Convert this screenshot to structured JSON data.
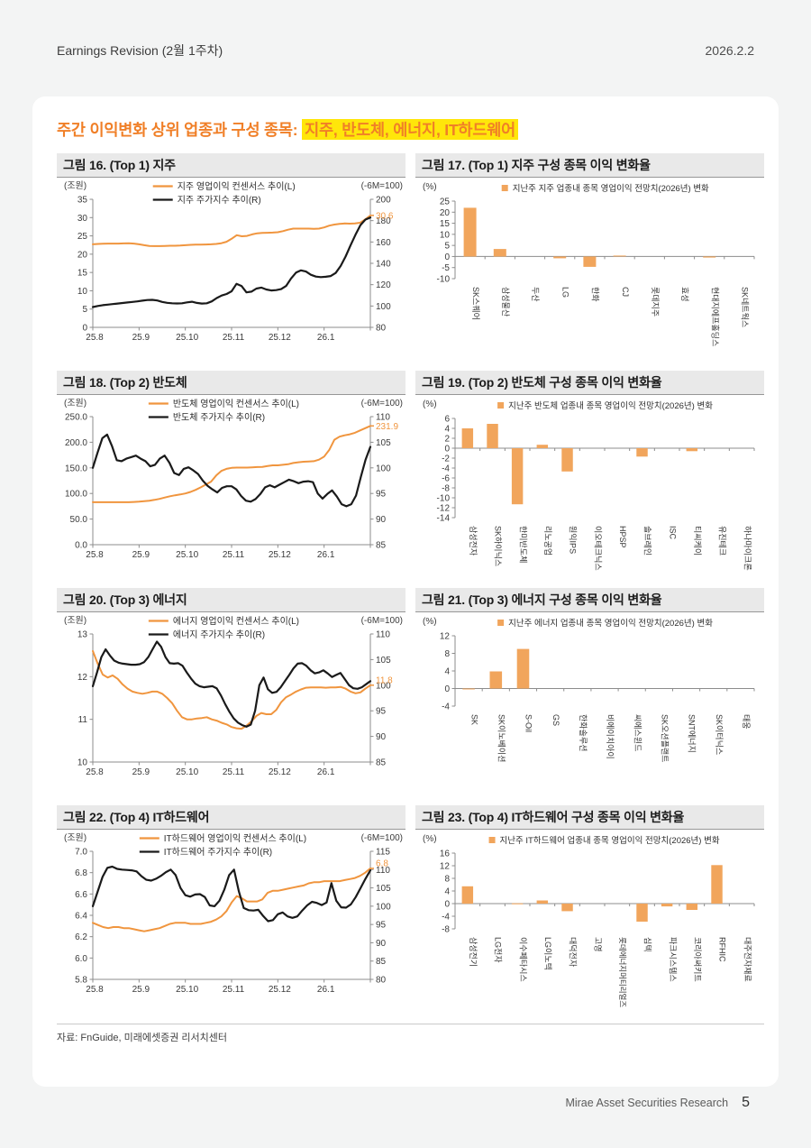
{
  "page": {
    "header_left": "Earnings Revision (2월 1주차)",
    "header_right": "2026.2.2",
    "title_prefix": "주간 이익변화 상위 업종과 구성 종목: ",
    "title_highlight": "지주, 반도체, 에너지, IT하드웨어",
    "source": "자료: FnGuide, 미래에셋증권 리서치센터",
    "footer_brand": "Mirae Asset Securities Research",
    "footer_page": "5"
  },
  "colors": {
    "accent_orange": "#f07f27",
    "series_orange": "#f0953e",
    "bar_orange": "#f1a55c",
    "series_black": "#1a1a1a",
    "axis_gray": "#8c8c8c",
    "highlight_yellow": "#ffe60a"
  },
  "chart_data": [
    {
      "figure_title": "그림 16. (Top 1) 지주",
      "type": "line",
      "unit_left": "(조원)",
      "unit_right": "(-6M=100)",
      "x_ticklabels": [
        "25.8",
        "25.9",
        "25.10",
        "25.11",
        "25.12",
        "26.1"
      ],
      "ylim_left": [
        0,
        35
      ],
      "yticks_left": [
        "35",
        "30",
        "25",
        "20",
        "15",
        "10",
        "5",
        "0"
      ],
      "ylim_right": [
        80,
        200
      ],
      "yticks_right": [
        "200",
        "180",
        "160",
        "140",
        "120",
        "100",
        "80"
      ],
      "last_value_label": "30.6",
      "series": [
        {
          "name": "지주 영업이익 컨센서스 추이(L)",
          "axis": "left",
          "color": "orange",
          "values": [
            22.7,
            22.8,
            22.85,
            22.9,
            22.9,
            22.9,
            22.95,
            23.0,
            22.9,
            22.7,
            22.45,
            22.25,
            22.2,
            22.2,
            22.25,
            22.3,
            22.3,
            22.35,
            22.45,
            22.55,
            22.6,
            22.6,
            22.65,
            22.7,
            22.8,
            23.0,
            23.4,
            24.2,
            25.2,
            24.9,
            25.0,
            25.4,
            25.7,
            25.8,
            25.85,
            25.9,
            26.0,
            26.3,
            26.7,
            27.0,
            27.0,
            27.0,
            27.0,
            26.95,
            27.0,
            27.3,
            27.8,
            28.1,
            28.3,
            28.4,
            28.35,
            28.4,
            28.6,
            29.5,
            30.6
          ]
        },
        {
          "name": "지주 주가지수 추이(R)",
          "axis": "right",
          "color": "black",
          "values": [
            99,
            100,
            100.8,
            101.3,
            101.8,
            102.3,
            102.8,
            103.3,
            103.8,
            104.3,
            105.0,
            105.6,
            105.8,
            105.2,
            103.8,
            103.0,
            102.6,
            102.4,
            102.6,
            103.4,
            104.0,
            102.9,
            102.3,
            102.6,
            104.3,
            107.5,
            109.8,
            111.3,
            113.8,
            120.8,
            118.8,
            112.8,
            113.5,
            116.3,
            117.3,
            115.5,
            114.6,
            114.9,
            115.8,
            118.8,
            125.8,
            131.3,
            133.4,
            132.3,
            129.3,
            127.6,
            127.1,
            127.4,
            128.1,
            131.0,
            137.5,
            146.3,
            156.8,
            166.8,
            175.8,
            181.0,
            182.9
          ]
        }
      ]
    },
    {
      "figure_title": "그림 17. (Top 1) 지주 구성 종목 이익 변화율",
      "type": "bar",
      "unit": "(%)",
      "legend": "지난주 지주 업종내 종목 영업이익 전망치(2026년) 변화",
      "ylim": [
        -10,
        25
      ],
      "yticks": [
        "25",
        "20",
        "15",
        "10",
        "5",
        "0",
        "-5",
        "-10"
      ],
      "categories": [
        "SK스퀘어",
        "삼성물산",
        "두산",
        "LG",
        "한화",
        "CJ",
        "롯데지주",
        "효성",
        "현대지에프홀딩스",
        "SK네트웍스"
      ],
      "values": [
        22.0,
        3.4,
        0.0,
        -0.8,
        -4.7,
        0.4,
        0.0,
        0.0,
        -0.5,
        0.0
      ]
    },
    {
      "figure_title": "그림 18. (Top 2) 반도체",
      "type": "line",
      "unit_left": "(조원)",
      "unit_right": "(-6M=100)",
      "x_ticklabels": [
        "25.8",
        "25.9",
        "25.10",
        "25.11",
        "25.12",
        "26.1"
      ],
      "ylim_left": [
        0,
        250
      ],
      "yticks_left": [
        "250.0",
        "200.0",
        "150.0",
        "100.0",
        "50.0",
        "0.0"
      ],
      "ylim_right": [
        85,
        110
      ],
      "yticks_right": [
        "110",
        "105",
        "100",
        "95",
        "90",
        "85"
      ],
      "last_value_label": "231.9",
      "series": [
        {
          "name": "반도체 영업이익 컨센서스 추이(L)",
          "axis": "left",
          "color": "orange",
          "values": [
            83,
            83,
            83,
            83,
            83,
            83,
            83,
            83,
            83.5,
            84,
            85,
            86,
            87.5,
            89.5,
            92,
            94.5,
            96.5,
            98,
            100,
            103,
            107,
            112,
            117.5,
            123,
            135,
            144,
            148,
            150,
            150.5,
            150.5,
            150.5,
            151,
            151.5,
            152,
            153.5,
            155,
            155,
            156,
            157,
            159.5,
            161,
            162,
            162.5,
            163,
            166,
            172,
            185,
            205,
            211,
            213.5,
            215.5,
            218.5,
            223,
            227.5,
            231.9
          ]
        },
        {
          "name": "반도체 주가지수 추이(R)",
          "axis": "right",
          "color": "black",
          "values": [
            100,
            103,
            105.8,
            106.5,
            104.3,
            101.5,
            101.3,
            101.8,
            102.1,
            102.4,
            101.8,
            101.3,
            100.3,
            100.6,
            101.8,
            102.4,
            101,
            99,
            98.6,
            99.8,
            100.1,
            99.5,
            98.8,
            97.5,
            96.5,
            95.8,
            95.2,
            96.1,
            96.4,
            96.4,
            95.8,
            94.5,
            93.6,
            93.4,
            93.9,
            94.9,
            96.2,
            96.6,
            96.2,
            96.7,
            97.2,
            97.7,
            97.4,
            97.0,
            97.3,
            97.4,
            97.2,
            95.0,
            94.0,
            94.9,
            95.6,
            94.4,
            92.9,
            92.5,
            92.9,
            94.6,
            98.2,
            101.6,
            104.1
          ]
        }
      ]
    },
    {
      "figure_title": "그림 19. (Top 2) 반도체 구성 종목 이익 변화율",
      "type": "bar",
      "unit": "(%)",
      "legend": "지난주 반도체 업종내 종목 영업이익 전망치(2026년) 변화",
      "ylim": [
        -14,
        6
      ],
      "yticks": [
        "6",
        "4",
        "2",
        "0",
        "-2",
        "-4",
        "-6",
        "-8",
        "-10",
        "-12",
        "-14"
      ],
      "categories": [
        "삼성전자",
        "SK하이닉스",
        "한미반도체",
        "리노공업",
        "원익IPS",
        "이오테크닉스",
        "HPSP",
        "솔브레인",
        "ISC",
        "티씨케이",
        "유진테크",
        "하나마이크론"
      ],
      "values": [
        4.0,
        4.9,
        -11.3,
        0.7,
        -4.7,
        0.0,
        0.0,
        -1.7,
        0.0,
        -0.6,
        0.0,
        0.0
      ]
    },
    {
      "figure_title": "그림 20. (Top 3) 에너지",
      "type": "line",
      "unit_left": "(조원)",
      "unit_right": "(-6M=100)",
      "x_ticklabels": [
        "25.8",
        "25.9",
        "25.10",
        "25.11",
        "25.12",
        "26.1"
      ],
      "ylim_left": [
        10,
        13
      ],
      "yticks_left": [
        "13",
        "12",
        "11",
        "10"
      ],
      "ylim_right": [
        85,
        110
      ],
      "yticks_right": [
        "110",
        "105",
        "100",
        "95",
        "90",
        "85"
      ],
      "last_value_label": "11.8",
      "series": [
        {
          "name": "에너지 영업이익 컨센서스 추이(L)",
          "axis": "left",
          "color": "orange",
          "values": [
            12.6,
            12.3,
            12.05,
            11.98,
            12.03,
            11.95,
            11.82,
            11.72,
            11.65,
            11.62,
            11.6,
            11.62,
            11.65,
            11.65,
            11.6,
            11.5,
            11.38,
            11.2,
            11.05,
            11.0,
            11.0,
            11.02,
            11.03,
            11.05,
            11.0,
            10.97,
            10.92,
            10.88,
            10.82,
            10.79,
            10.78,
            10.85,
            10.95,
            11.08,
            11.15,
            11.12,
            11.12,
            11.22,
            11.4,
            11.52,
            11.58,
            11.65,
            11.7,
            11.74,
            11.75,
            11.75,
            11.75,
            11.74,
            11.75,
            11.75,
            11.76,
            11.72,
            11.65,
            11.61,
            11.63,
            11.72,
            11.8
          ]
        },
        {
          "name": "에너지 주가지수 추이(R)",
          "axis": "right",
          "color": "black",
          "values": [
            99.8,
            102.5,
            105.5,
            107.0,
            105.8,
            104.8,
            104.4,
            104.2,
            104.1,
            104.0,
            104.0,
            104.1,
            104.5,
            105.5,
            107.0,
            108.5,
            107.5,
            105.5,
            104.3,
            104.2,
            104.3,
            103.8,
            102.5,
            101.3,
            100.3,
            99.8,
            99.6,
            99.7,
            99.8,
            99.4,
            98.0,
            96.3,
            94.8,
            93.5,
            92.7,
            92.2,
            91.9,
            92.3,
            95.0,
            100.0,
            101.5,
            99.2,
            98.5,
            98.7,
            99.6,
            100.8,
            102.0,
            103.3,
            104.2,
            104.3,
            103.8,
            102.9,
            102.3,
            102.5,
            102.9,
            102.3,
            101.6,
            102.0,
            102.4,
            101.2,
            100.0,
            99.4,
            99.3,
            99.6,
            100.2,
            100.8
          ]
        }
      ]
    },
    {
      "figure_title": "그림 21. (Top 3) 에너지 구성 종목 이익 변화율",
      "type": "bar",
      "unit": "(%)",
      "legend": "지난주 에너지 업종내 종목 영업이익 전망치(2026년) 변화",
      "ylim": [
        -4,
        12
      ],
      "yticks": [
        "12",
        "8",
        "4",
        "0",
        "-4"
      ],
      "categories": [
        "SK",
        "SK이노베이션",
        "S-Oil",
        "GS",
        "한화솔루션",
        "비에이치아이",
        "씨에스윈드",
        "SK오션플랜트",
        "SNT에너지",
        "SK이터닉스",
        "태웅"
      ],
      "values": [
        -0.2,
        3.9,
        9.0,
        0.0,
        0.0,
        0.0,
        0.0,
        0.0,
        0.0,
        0.0,
        0.0
      ]
    },
    {
      "figure_title": "그림 22. (Top 4) IT하드웨어",
      "type": "line",
      "unit_left": "(조원)",
      "unit_right": "(-6M=100)",
      "x_ticklabels": [
        "25.8",
        "25.9",
        "25.10",
        "25.11",
        "25.12",
        "26.1"
      ],
      "ylim_left": [
        5.8,
        7.0
      ],
      "yticks_left": [
        "7.0",
        "6.8",
        "6.6",
        "6.4",
        "6.2",
        "6.0",
        "5.8"
      ],
      "ylim_right": [
        80,
        115
      ],
      "yticks_right": [
        "115",
        "110",
        "105",
        "100",
        "95",
        "90",
        "85",
        "80"
      ],
      "last_value_label": "6.8",
      "series": [
        {
          "name": "IT하드웨어 영업이익 컨센서스 추이(L)",
          "axis": "left",
          "color": "orange",
          "values": [
            6.33,
            6.31,
            6.29,
            6.28,
            6.29,
            6.29,
            6.28,
            6.28,
            6.27,
            6.26,
            6.25,
            6.26,
            6.27,
            6.28,
            6.3,
            6.32,
            6.33,
            6.33,
            6.33,
            6.32,
            6.32,
            6.32,
            6.33,
            6.34,
            6.36,
            6.39,
            6.44,
            6.52,
            6.58,
            6.56,
            6.53,
            6.53,
            6.53,
            6.55,
            6.61,
            6.63,
            6.63,
            6.64,
            6.65,
            6.66,
            6.67,
            6.68,
            6.7,
            6.71,
            6.71,
            6.72,
            6.72,
            6.72,
            6.72,
            6.73,
            6.74,
            6.75,
            6.77,
            6.8,
            6.84
          ]
        },
        {
          "name": "IT하드웨어 주가지수 추이(R)",
          "axis": "right",
          "color": "black",
          "values": [
            100,
            104,
            108,
            110.5,
            110.8,
            110.2,
            110,
            109.9,
            109.8,
            109.5,
            108.2,
            107.2,
            107,
            107.5,
            108.3,
            109.3,
            110,
            108.5,
            105,
            103,
            102.6,
            103.2,
            103.3,
            102.5,
            100.2,
            100,
            101.5,
            104.5,
            108.5,
            110,
            104,
            99.5,
            98.9,
            98.8,
            99,
            97.3,
            95.9,
            96.2,
            97.8,
            98.3,
            97.2,
            96.8,
            97.2,
            98.8,
            100.2,
            101.2,
            100.9,
            100.3,
            101,
            106.3,
            101.5,
            99.7,
            99.6,
            100.5,
            102.5,
            105,
            107.5,
            109.8
          ]
        }
      ]
    },
    {
      "figure_title": "그림 23. (Top 4) IT하드웨어 구성 종목 이익 변화율",
      "type": "bar",
      "unit": "(%)",
      "legend": "지난주 IT하드웨어 업종내 종목 영업이익 전망치(2026년) 변화",
      "ylim": [
        -8,
        16
      ],
      "yticks": [
        "16",
        "12",
        "8",
        "4",
        "0",
        "-4",
        "-8"
      ],
      "categories": [
        "삼성전기",
        "LG전자",
        "이수페타시스",
        "LG이노텍",
        "대덕전자",
        "고영",
        "롯데에너지머티리얼즈",
        "심텍",
        "파크시스템스",
        "코리아써키트",
        "RFHIC",
        "대주전자재료"
      ],
      "values": [
        5.5,
        0.0,
        0.1,
        1.0,
        -2.4,
        0.0,
        0.0,
        -5.7,
        -0.9,
        -2.0,
        12.2,
        0.0
      ]
    }
  ]
}
